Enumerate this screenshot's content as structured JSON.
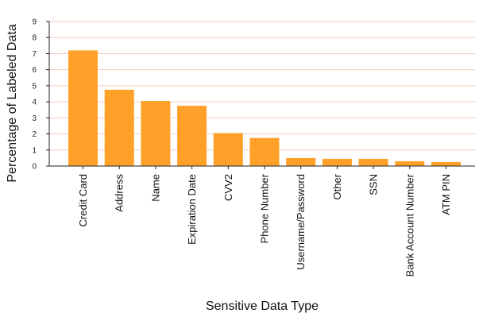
{
  "chart_data": {
    "type": "bar",
    "title": "",
    "xlabel": "Sensitive Data Type",
    "ylabel": "Percentage of Labeled Data",
    "categories": [
      "Credit Card",
      "Address",
      "Name",
      "Expiration Date",
      "CVV2",
      "Phone Number",
      "Username/Password",
      "Other",
      "SSN",
      "Bank Account Number",
      "ATM PIN"
    ],
    "values": [
      7.2,
      4.75,
      4.05,
      3.75,
      2.05,
      1.75,
      0.5,
      0.45,
      0.45,
      0.3,
      0.25
    ],
    "ylim": [
      0,
      9
    ],
    "yticks": [
      0,
      1,
      2,
      3,
      4,
      5,
      6,
      7,
      8,
      9
    ],
    "grid": true,
    "legend": "none",
    "colors": {
      "bar": "#ffa028",
      "grid": "#f2cdbd",
      "axis": "#222222"
    }
  }
}
